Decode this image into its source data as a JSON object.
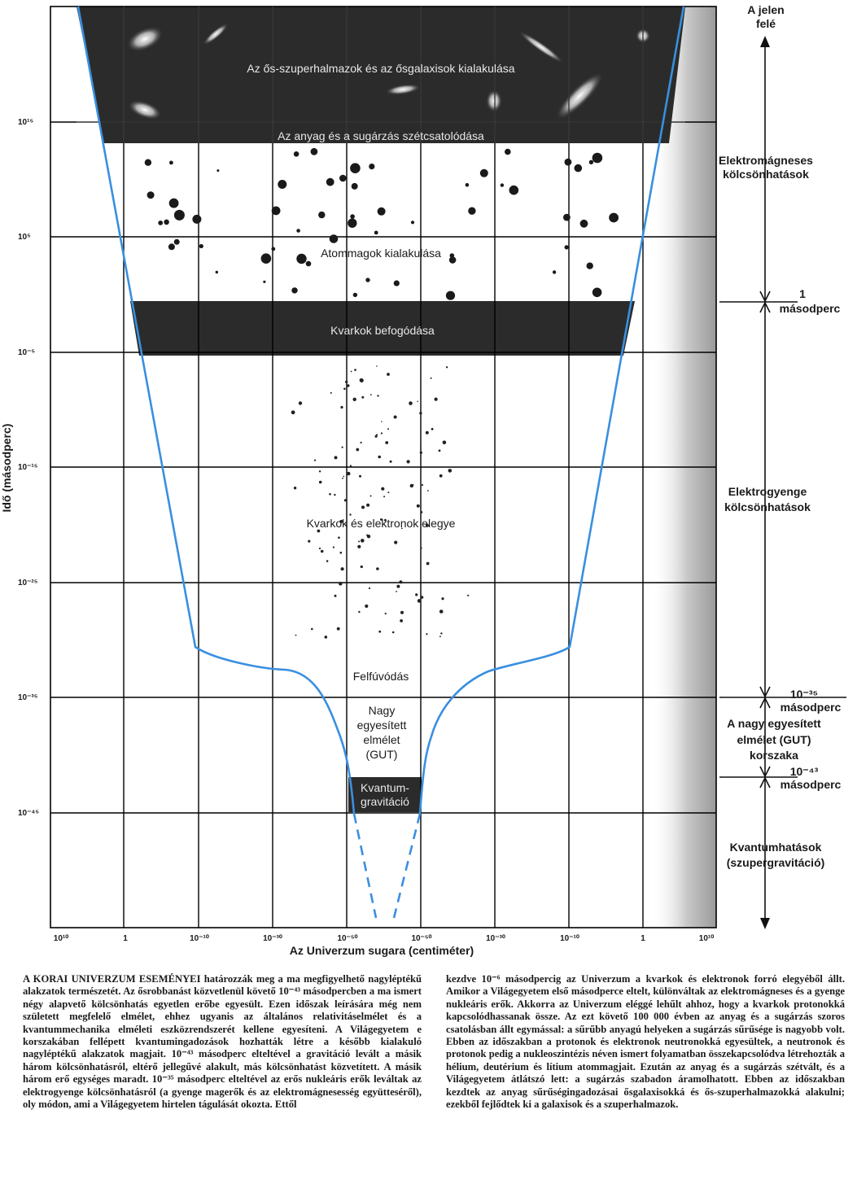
{
  "diagram": {
    "y_axis": {
      "label": "Idő (másodperc)",
      "ticks": [
        "10¹⁵",
        "10⁵",
        "10⁻⁵",
        "10⁻¹⁵",
        "10⁻²⁵",
        "10⁻³⁵",
        "10⁻⁴⁵"
      ]
    },
    "x_axis": {
      "label": "Az Univerzum sugara (centiméter)",
      "ticks": [
        "10¹⁰",
        "1",
        "10⁻¹⁰",
        "10⁻³⁰",
        "10⁻⁵⁰",
        "10⁻⁵⁰",
        "10⁻³⁰",
        "10⁻¹⁰",
        "1",
        "10¹⁰"
      ]
    },
    "bands": {
      "galaxies": "Az ős-szuperhalmazok és az ősgalaxisok kialakulása",
      "decoupling": "Az anyag és a sugárzás szétcsatolódása",
      "quark_confinement": "Kvarkok befogódása",
      "quantum_gravity_line1": "Kvantum-",
      "quantum_gravity_line2": "gravitáció"
    },
    "regions": {
      "nuclei": "Atommagok kialakulása",
      "quark_electron": "Kvarkok és elektronok elegye",
      "inflation": "Felfúvódás",
      "gut_line1": "Nagy",
      "gut_line2": "egyesített",
      "gut_line3": "elmélet",
      "gut_line4": "(GUT)"
    },
    "annotations": {
      "toward_present_line1": "A jelen",
      "toward_present_line2": "felé",
      "em_line1": "Elektromágneses",
      "em_line2": "kölcsönhatások",
      "one_second_line1": "1",
      "one_second_line2": "másodperc",
      "electroweak_line1": "Elektrogyenge",
      "electroweak_line2": "kölcsönhatások",
      "t35_line1": "10⁻³⁵",
      "t35_line2": "másodperc",
      "gut_era_line1": "A nagy egyesített",
      "gut_era_line2": "elmélet (GUT)",
      "gut_era_line3": "korszaka",
      "t43_line1": "10⁻⁴³",
      "t43_line2": "másodperc",
      "quantum_line1": "Kvantumhatások",
      "quantum_line2": "(szupergravitáció)"
    },
    "colors": {
      "curve": "#3a8fe0",
      "band": "#2b2b2b",
      "grid": "#000000"
    }
  },
  "caption": {
    "lead": "A korai Univerzum eseményei",
    "left_body": " határozzák meg a ma megfigyelhető nagyléptékű alakzatok természetét. Az ősrobbanást közvetlenül követő 10⁻⁴³ másodpercben a ma ismert négy alapvető kölcsönhatás egyetlen erőbe egyesült. Ezen időszak leírására még nem született megfelelő elmélet, ehhez ugyanis az általános relativitáselmélet és a kvantummechanika elméleti eszközrendszerét kellene egyesíteni. A Világegyetem e korszakában fellépett kvantumingadozások hozhatták létre a később kialakuló nagyléptékű alakzatok magjait. 10⁻⁴³ másodperc elteltével a gravitáció levált a másik három kölcsönhatásról, eltérő jellegűvé alakult, más kölcsönhatást közvetített. A másik három erő egységes maradt. 10⁻³⁵ másodperc elteltével az erős nukleáris erők leváltak az elektrogyenge kölcsönhatásról (a gyenge magerők és az elektromágnesesség együtteséről), oly módon, ami a Világegyetem hirtelen tágulását okozta. Ettől",
    "right_body": "kezdve 10⁻⁶ másodpercig az Univerzum a kvarkok és elektronok forró elegyéből állt. Amikor a Világegyetem első másodperce eltelt, különváltak az elektromágneses és a gyenge nukleáris erők. Akkorra az Univerzum eléggé lehűlt ahhoz, hogy a kvarkok protonokká kapcsolódhassanak össze. Az ezt követő 100 000 évben az anyag és a sugárzás szoros csatolásban állt egymással: a sűrűbb anyagú helyeken a sugárzás sűrűsége is nagyobb volt. Ebben az időszakban a protonok és elektronok neutronokká egyesültek, a neutronok és protonok pedig a nukleoszintézis néven ismert folyamatban összekapcsolódva létrehozták a hélium, deutérium és lítium atommagjait. Ezután az anyag és a sugárzás szétvált, és a Világegyetem átlátszó lett: a sugárzás szabadon áramolhatott. Ebben az időszakban kezdtek az anyag sűrűségingadozásai ősgalaxisokká és ős-szuperhalmazokká alakulni; ezekből fejlődtek ki a galaxisok és a szuperhalmazok."
  }
}
